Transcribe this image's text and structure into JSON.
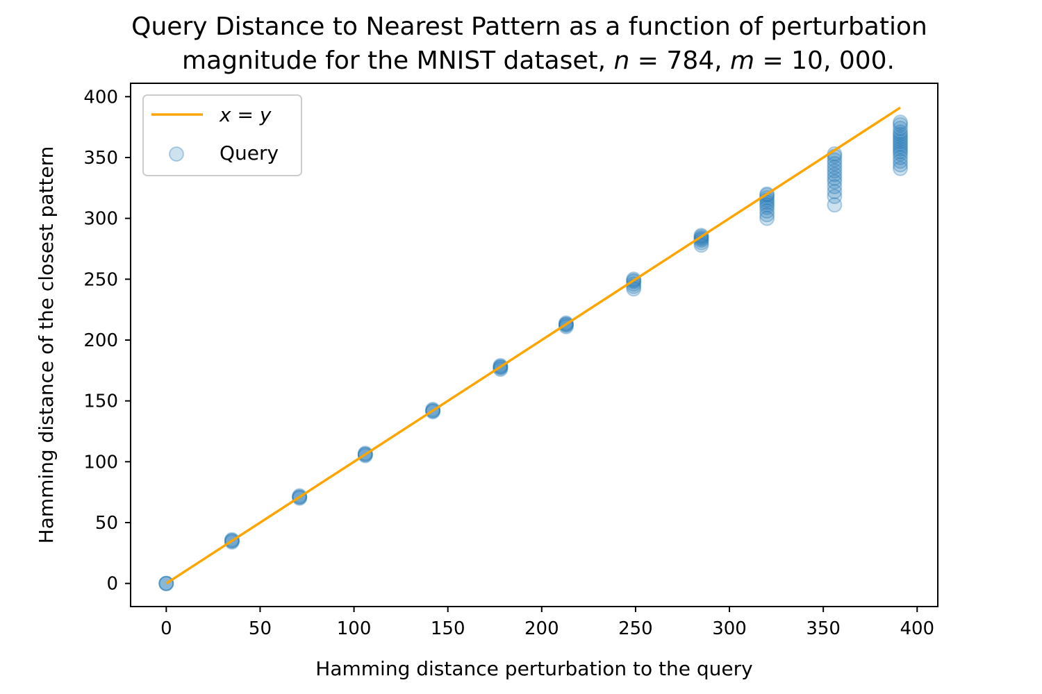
{
  "chart_data": {
    "type": "scatter",
    "title_line1": "Query Distance to Nearest Pattern as a function of perturbation",
    "title_line2_prefix": "magnitude for the MNIST dataset, ",
    "title_n_var": "n",
    "title_n_value": " = 784, ",
    "title_m_var": "m",
    "title_m_value": " = 10, 000.",
    "xlabel": "Hamming distance perturbation to the query",
    "ylabel": "Hamming distance of the closest pattern",
    "xlim": [
      -19,
      411
    ],
    "ylim": [
      -19,
      411
    ],
    "x_ticks": [
      0,
      50,
      100,
      150,
      200,
      250,
      300,
      350,
      400
    ],
    "y_ticks": [
      0,
      50,
      100,
      150,
      200,
      250,
      300,
      350,
      400
    ],
    "x_tick_labels": [
      "0",
      "50",
      "100",
      "150",
      "200",
      "250",
      "300",
      "350",
      "400"
    ],
    "y_tick_labels": [
      "0",
      "50",
      "100",
      "150",
      "200",
      "250",
      "300",
      "350",
      "400"
    ],
    "grid": false,
    "legend_position": "top-left",
    "legend": {
      "line_label_x": "x",
      "line_label_eq": " = ",
      "line_label_y": "y",
      "scatter_label": "Query"
    },
    "reference_line": {
      "name": "x = y",
      "x": [
        0,
        391
      ],
      "y": [
        0,
        391
      ],
      "color": "#FFA500"
    },
    "series": [
      {
        "name": "Query",
        "color": "#1f77b4",
        "groups": [
          {
            "x": 0,
            "y": [
              0,
              0,
              0
            ]
          },
          {
            "x": 35,
            "y": [
              34,
              35,
              35,
              36
            ]
          },
          {
            "x": 71,
            "y": [
              70,
              71,
              71,
              72
            ]
          },
          {
            "x": 106,
            "y": [
              105,
              106,
              106,
              107
            ]
          },
          {
            "x": 142,
            "y": [
              141,
              142,
              142,
              143
            ]
          },
          {
            "x": 178,
            "y": [
              176,
              177,
              178,
              178,
              179
            ]
          },
          {
            "x": 213,
            "y": [
              211,
              212,
              213,
              213,
              214
            ]
          },
          {
            "x": 249,
            "y": [
              242,
              244,
              246,
              248,
              249,
              250
            ]
          },
          {
            "x": 285,
            "y": [
              278,
              280,
              282,
              283,
              284,
              285,
              286
            ]
          },
          {
            "x": 320,
            "y": [
              300,
              303,
              306,
              309,
              311,
              313,
              315,
              317,
              319,
              320
            ]
          },
          {
            "x": 356,
            "y": [
              311,
              318,
              322,
              326,
              330,
              333,
              336,
              339,
              342,
              345,
              348,
              351,
              353
            ]
          },
          {
            "x": 391,
            "y": [
              341,
              344,
              347,
              350,
              353,
              355,
              357,
              359,
              361,
              363,
              365,
              367,
              369,
              371,
              374,
              377,
              379
            ]
          }
        ]
      }
    ]
  }
}
